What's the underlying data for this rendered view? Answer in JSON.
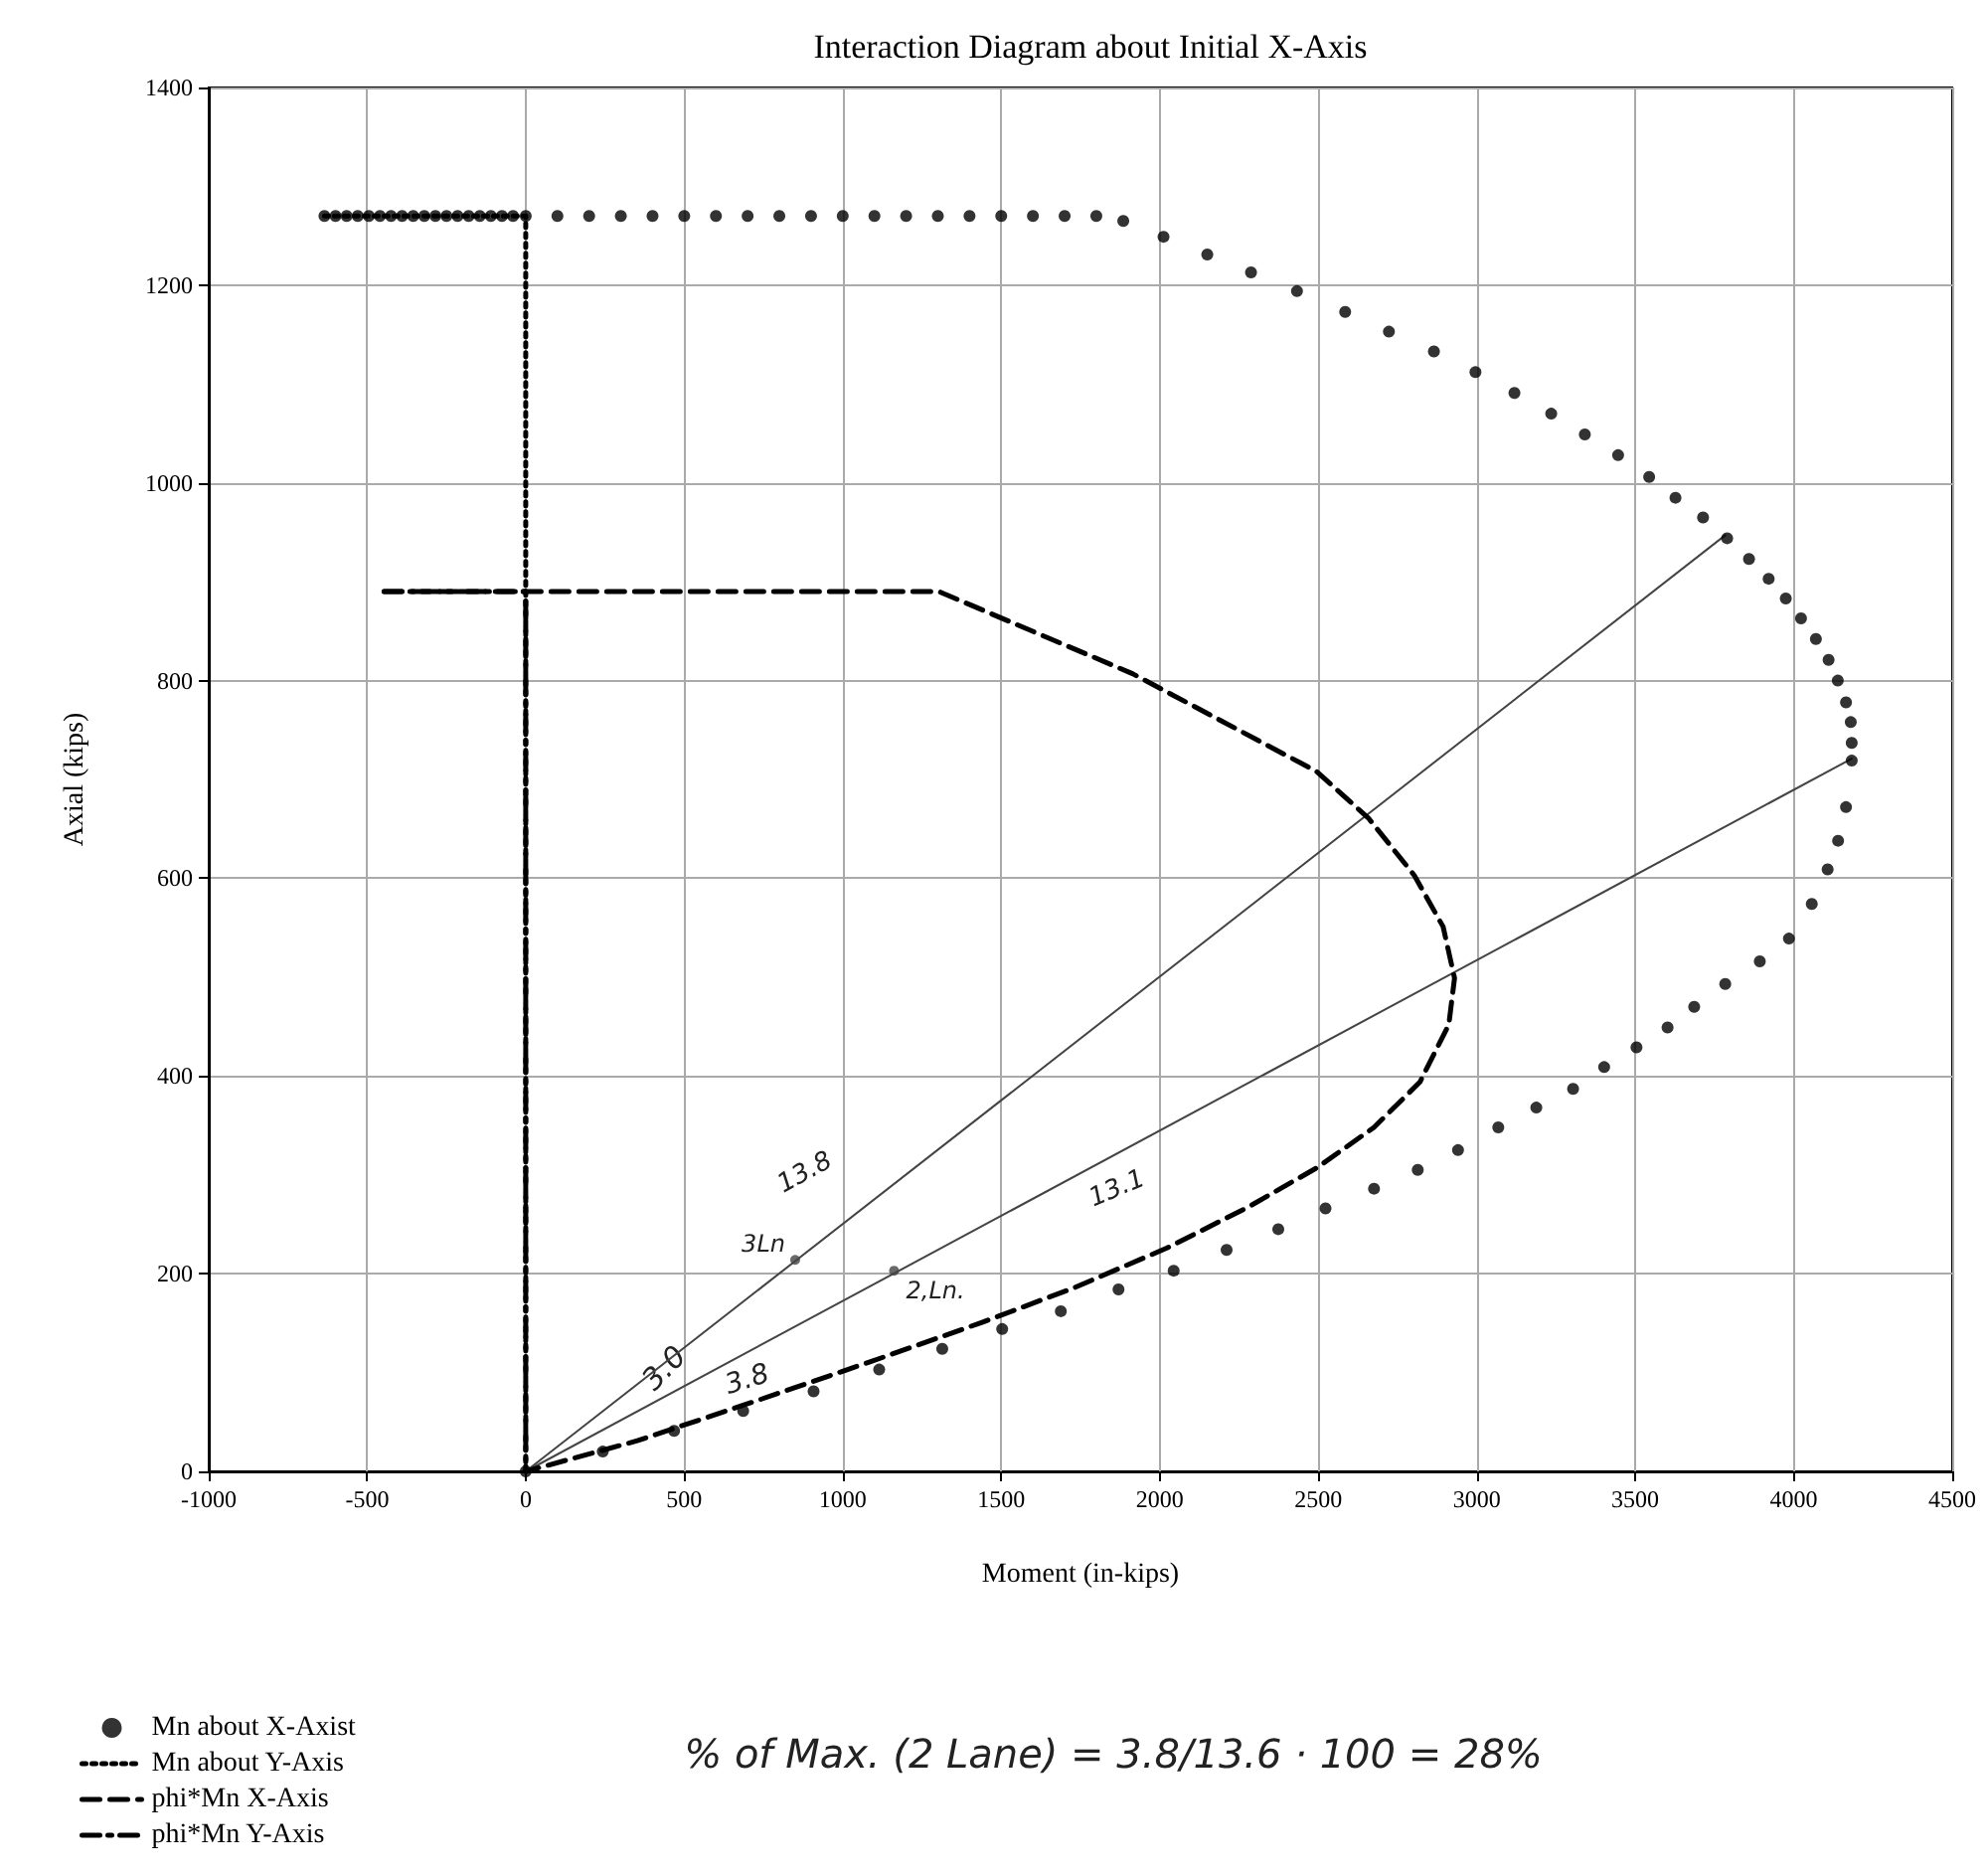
{
  "chart_data": {
    "type": "line",
    "title": "Interaction Diagram about Initial X-Axis",
    "xlabel": "Moment (in-kips)",
    "ylabel": "Axial (kips)",
    "xlim": [
      -1000,
      4500
    ],
    "xticks": [
      -1000,
      -500,
      0,
      500,
      1000,
      1500,
      2000,
      2500,
      3000,
      3500,
      4000,
      4500
    ],
    "ylim": [
      0,
      1400
    ],
    "yticks": [
      0,
      200,
      400,
      600,
      800,
      1000,
      1200,
      1400
    ],
    "grid": true,
    "legend": "bottom left",
    "series": [
      {
        "name": "Mn about X-Axist",
        "type": "scatter",
        "marker": "circle",
        "color": "#000000",
        "x": [
          -635,
          -600,
          -565,
          -530,
          -495,
          -460,
          -425,
          -390,
          -355,
          -320,
          -285,
          -250,
          -215,
          -180,
          -145,
          -110,
          -75,
          -40,
          0,
          100,
          200,
          300,
          400,
          500,
          600,
          700,
          800,
          900,
          1000,
          1100,
          1200,
          1300,
          1400,
          1500,
          1600,
          1700,
          1800,
          1885,
          2012,
          2150,
          2288,
          2433,
          2585,
          2723,
          2865,
          2996,
          3119,
          3235,
          3341,
          3446,
          3544,
          3627,
          3714,
          3790,
          3859,
          3921,
          3975,
          4023,
          4070,
          4110,
          4139,
          4165,
          4180,
          4183,
          4183,
          4165,
          4140,
          4107,
          4057,
          3985,
          3893,
          3784,
          3686,
          3602,
          3504,
          3402,
          3304,
          3188,
          3068,
          2941,
          2814,
          2676,
          2523,
          2374,
          2211,
          2044,
          1870,
          1688,
          1503,
          1314,
          1115,
          908,
          686,
          468,
          243,
          0
        ],
        "values": [
          1270,
          1270,
          1270,
          1270,
          1270,
          1270,
          1270,
          1270,
          1270,
          1270,
          1270,
          1270,
          1270,
          1270,
          1270,
          1270,
          1270,
          1270,
          1270,
          1270,
          1270,
          1270,
          1270,
          1270,
          1270,
          1270,
          1270,
          1270,
          1270,
          1270,
          1270,
          1270,
          1270,
          1270,
          1270,
          1270,
          1270,
          1265,
          1249,
          1231,
          1213,
          1194,
          1173,
          1153,
          1133,
          1112,
          1091,
          1070,
          1049,
          1028,
          1006,
          985,
          965,
          944,
          923,
          903,
          883,
          863,
          842,
          821,
          800,
          778,
          758,
          737,
          719,
          672,
          638,
          609,
          574,
          539,
          516,
          493,
          470,
          449,
          429,
          409,
          387,
          368,
          348,
          325,
          305,
          286,
          266,
          245,
          224,
          203,
          184,
          162,
          144,
          124,
          103,
          81,
          61,
          41,
          20,
          0
        ]
      },
      {
        "name": "Mn about Y-Axis",
        "marker": "none",
        "line_style": "dotted",
        "color": "#000000",
        "x": [
          -635,
          0,
          0
        ],
        "values": [
          1270,
          1270,
          0
        ]
      },
      {
        "name": "phi*Mn X-Axis",
        "marker": "none",
        "line_style": "dashed",
        "color": "#000000",
        "x": [
          -447,
          1304,
          1914,
          2495,
          2658,
          2803,
          2894,
          2930,
          2912,
          2821,
          2676,
          2495,
          2277,
          2023,
          1732,
          1442,
          1079,
          715,
          352,
          0
        ],
        "values": [
          890,
          890,
          807,
          708,
          661,
          603,
          551,
          499,
          452,
          394,
          348,
          307,
          267,
          226,
          186,
          151,
          110,
          70,
          31,
          0
        ]
      },
      {
        "name": "phi*Mn Y-Axis",
        "marker": "none",
        "line_style": "dashdot",
        "color": "#000000",
        "x": [
          -447,
          0,
          0
        ],
        "values": [
          890,
          890,
          0
        ]
      },
      {
        "marker": "none",
        "line_style": "solid",
        "color": "#444444",
        "x": [
          0,
          3784
        ],
        "values": [
          0,
          947
        ]
      },
      {
        "marker": "none",
        "line_style": "solid",
        "color": "#444444",
        "x": [
          0,
          4183
        ],
        "values": [
          0,
          721
        ]
      },
      {
        "type": "scatter",
        "marker": "circle",
        "color": "#444444",
        "x": [
          850,
          1162
        ],
        "values": [
          214,
          203
        ]
      }
    ],
    "annotations": [
      "13.8",
      {
        "text": "3Ln",
        "x": 850,
        "y": 214
      },
      "3.0",
      {
        "text": "2,Ln.",
        "x": 1162,
        "y": 203
      },
      "13.1",
      "3.8",
      "% of Max. (2 Lane) = 3.8/13.6 · 100 = 28%"
    ]
  }
}
